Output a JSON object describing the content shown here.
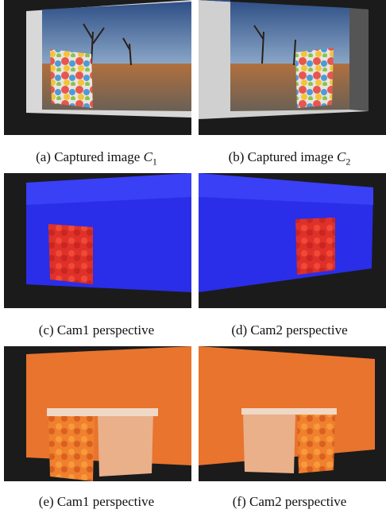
{
  "figure": {
    "panels": [
      {
        "label": "(a) Captured image",
        "symbol": "C",
        "subscript": "1"
      },
      {
        "label": "(b) Captured image",
        "symbol": "C",
        "subscript": "2"
      },
      {
        "label": "(c) Cam1 perspective"
      },
      {
        "label": "(d) Cam2 perspective"
      },
      {
        "label": "(e) Cam1 perspective"
      },
      {
        "label": "(f) Cam2 perspective"
      }
    ]
  }
}
